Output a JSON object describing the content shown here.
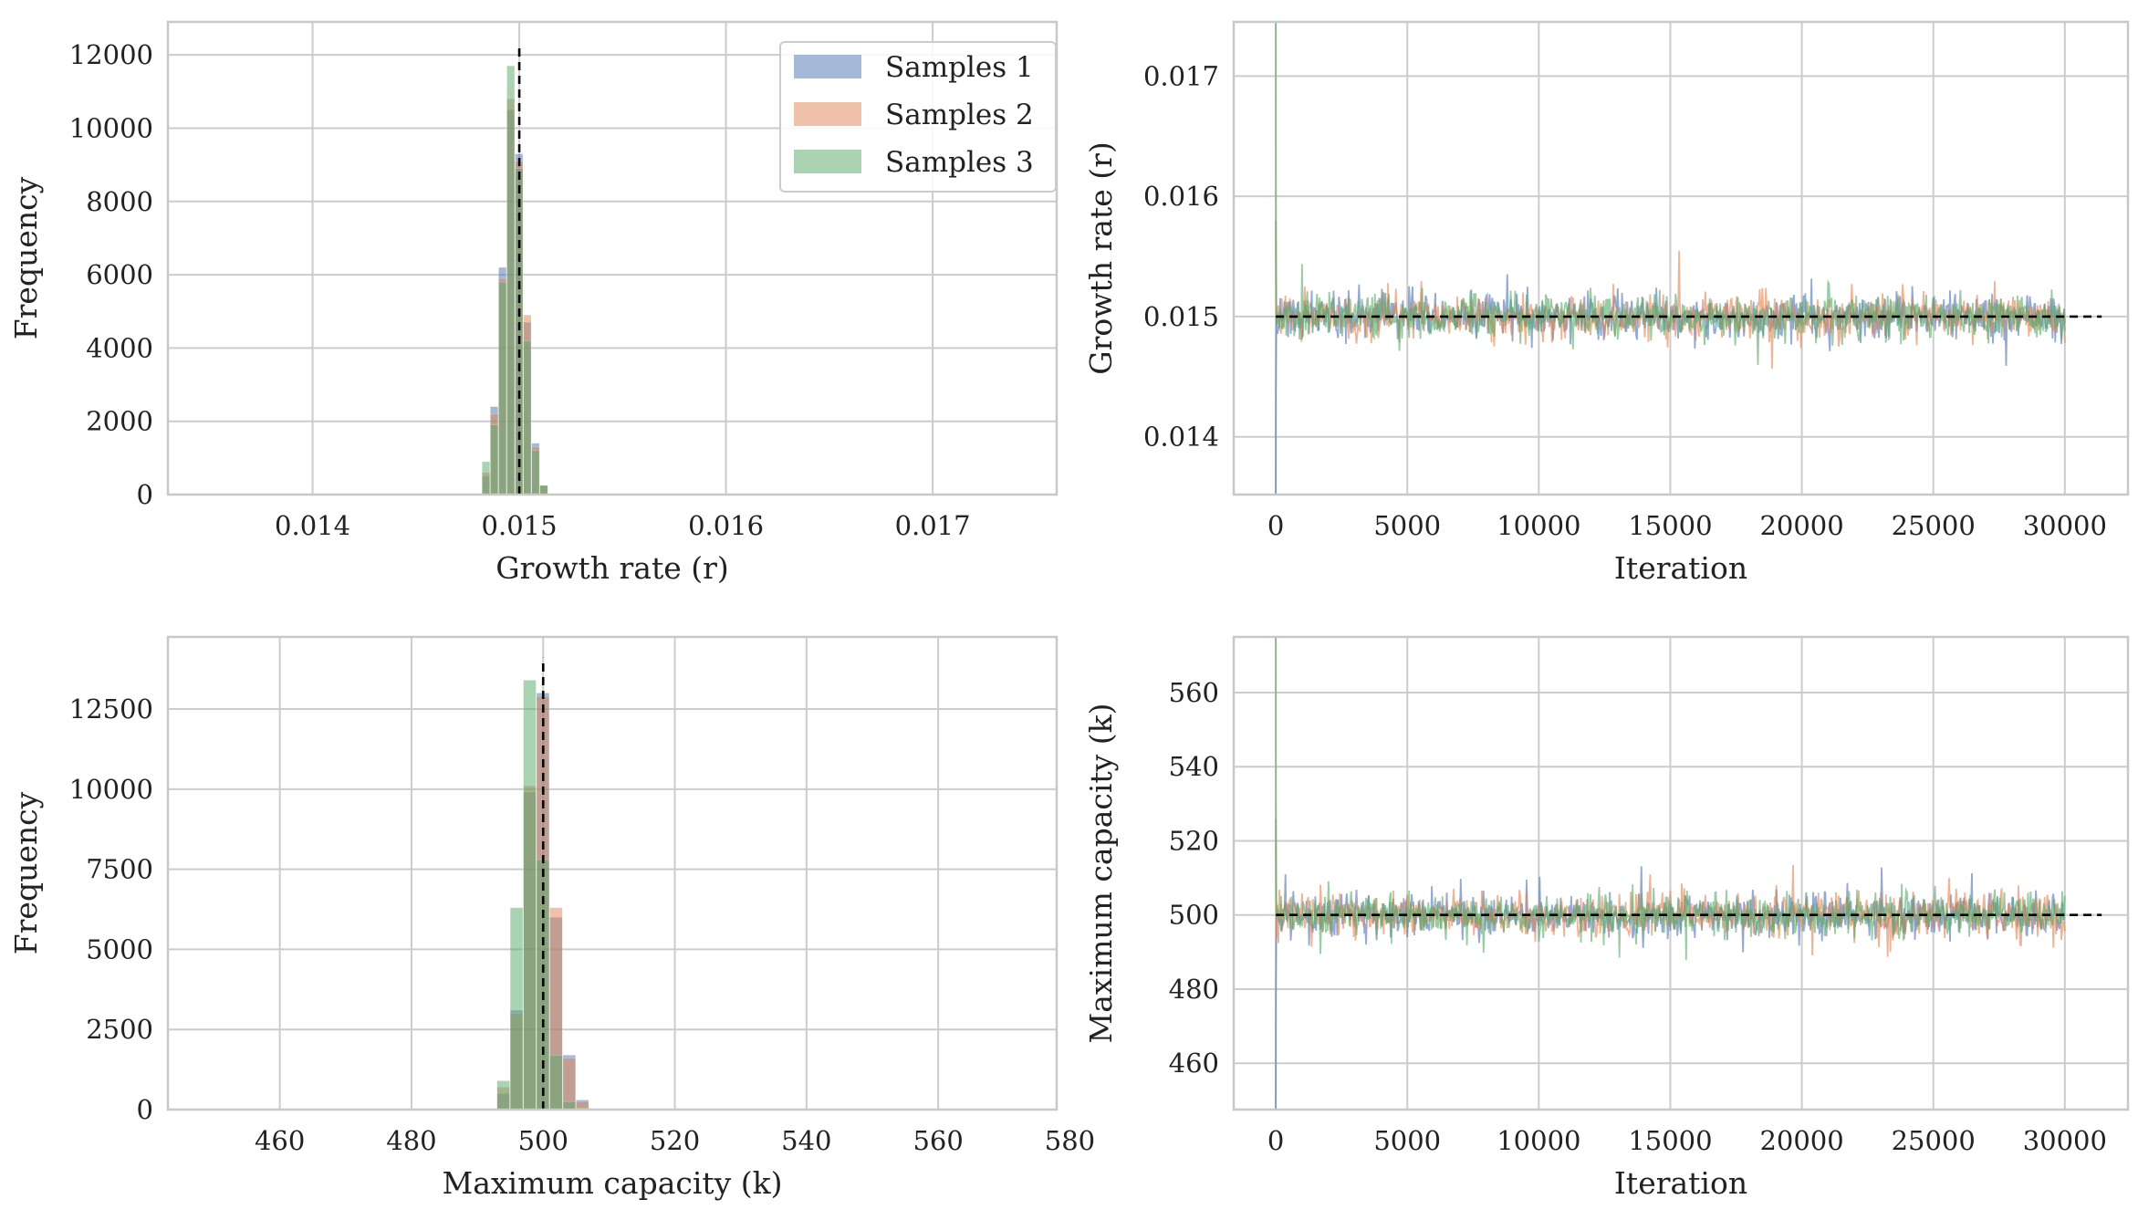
{
  "figure": {
    "background": "#ffffff",
    "grid_color": "#cccccc",
    "frame_color": "#c8c8c8",
    "reference_line_color": "#000000"
  },
  "legend": {
    "location": "top-right",
    "entries": [
      {
        "label": "Samples 1",
        "color": "#4c72b0"
      },
      {
        "label": "Samples 2",
        "color": "#dd8452"
      },
      {
        "label": "Samples 3",
        "color": "#55a868"
      }
    ]
  },
  "chart_data": [
    {
      "id": "hist_r",
      "type": "bar",
      "title": "",
      "xlabel": "Growth rate (r)",
      "ylabel": "Frequency",
      "xlim": [
        0.0133,
        0.0176
      ],
      "ylim": [
        0,
        12900
      ],
      "xticks": [
        0.014,
        0.015,
        0.016,
        0.017
      ],
      "xtick_labels": [
        "0.014",
        "0.015",
        "0.016",
        "0.017"
      ],
      "yticks": [
        0,
        2000,
        4000,
        6000,
        8000,
        10000,
        12000
      ],
      "ytick_labels": [
        "0",
        "2000",
        "4000",
        "6000",
        "8000",
        "10000",
        "12000"
      ],
      "reference_line": {
        "x": 0.015,
        "y_top": 12300
      },
      "bin_edges": [
        0.01482,
        0.01486,
        0.0149,
        0.01494,
        0.01498,
        0.01502,
        0.01506,
        0.0151,
        0.01514
      ],
      "series": [
        {
          "name": "Samples 1",
          "counts": [
            500,
            2400,
            6200,
            10500,
            9300,
            4700,
            1400,
            250
          ]
        },
        {
          "name": "Samples 2",
          "counts": [
            600,
            2200,
            5900,
            10800,
            9100,
            4900,
            1300,
            250
          ]
        },
        {
          "name": "Samples 3",
          "counts": [
            900,
            1900,
            5800,
            11700,
            8900,
            4200,
            1200,
            250
          ]
        }
      ]
    },
    {
      "id": "trace_r",
      "type": "line",
      "title": "",
      "xlabel": "Iteration",
      "ylabel": "Growth rate (r)",
      "xlim": [
        -1600,
        32400
      ],
      "ylim": [
        0.01352,
        0.01745
      ],
      "xticks": [
        0,
        5000,
        10000,
        15000,
        20000,
        25000,
        30000
      ],
      "xtick_labels": [
        "0",
        "5000",
        "10000",
        "15000",
        "20000",
        "25000",
        "30000"
      ],
      "yticks": [
        0.014,
        0.015,
        0.016,
        0.017
      ],
      "ytick_labels": [
        "0.014",
        "0.015",
        "0.016",
        "0.017"
      ],
      "reference_line": {
        "y": 0.015,
        "x_end": 31400
      },
      "n_iterations": 30000,
      "series": [
        {
          "name": "Samples 1",
          "start": 0.01352,
          "center": 0.015,
          "spread": 9e-05
        },
        {
          "name": "Samples 2",
          "start": 0.0158,
          "center": 0.015,
          "spread": 9e-05
        },
        {
          "name": "Samples 3",
          "start": 0.01745,
          "center": 0.015,
          "spread": 9e-05
        }
      ]
    },
    {
      "id": "hist_k",
      "type": "bar",
      "title": "",
      "xlabel": "Maximum capacity (k)",
      "ylabel": "Frequency",
      "xlim": [
        443,
        578
      ],
      "ylim": [
        0,
        14750
      ],
      "xticks": [
        460,
        480,
        500,
        520,
        540,
        560,
        580
      ],
      "xtick_labels": [
        "460",
        "480",
        "500",
        "520",
        "540",
        "560",
        "580"
      ],
      "yticks": [
        0,
        2500,
        5000,
        7500,
        10000,
        12500
      ],
      "ytick_labels": [
        "0",
        "2500",
        "5000",
        "7500",
        "10000",
        "12500"
      ],
      "reference_line": {
        "x": 500,
        "y_top": 14100
      },
      "bin_edges": [
        493,
        495,
        497,
        499,
        501,
        503,
        505,
        507
      ],
      "series": [
        {
          "name": "Samples 1",
          "counts": [
            500,
            3100,
            9900,
            13000,
            6000,
            1700,
            300
          ]
        },
        {
          "name": "Samples 2",
          "counts": [
            700,
            3000,
            10100,
            12900,
            6300,
            1600,
            250
          ]
        },
        {
          "name": "Samples 3",
          "counts": [
            900,
            6300,
            13400,
            7800,
            1700,
            250,
            50
          ]
        }
      ]
    },
    {
      "id": "trace_k",
      "type": "line",
      "title": "",
      "xlabel": "Iteration",
      "ylabel": "Maximum capacity (k)",
      "xlim": [
        -1600,
        32400
      ],
      "ylim": [
        447.5,
        575
      ],
      "xticks": [
        0,
        5000,
        10000,
        15000,
        20000,
        25000,
        30000
      ],
      "xtick_labels": [
        "0",
        "5000",
        "10000",
        "15000",
        "20000",
        "25000",
        "30000"
      ],
      "yticks": [
        460,
        480,
        500,
        520,
        540,
        560
      ],
      "ytick_labels": [
        "460",
        "480",
        "500",
        "520",
        "540",
        "560"
      ],
      "reference_line": {
        "y": 500,
        "x_end": 31400
      },
      "n_iterations": 30000,
      "series": [
        {
          "name": "Samples 1",
          "start": 447.5,
          "center": 500,
          "spread": 2.9
        },
        {
          "name": "Samples 2",
          "start": 526,
          "center": 500,
          "spread": 2.9
        },
        {
          "name": "Samples 3",
          "start": 575,
          "center": 500,
          "spread": 2.9
        }
      ]
    }
  ]
}
